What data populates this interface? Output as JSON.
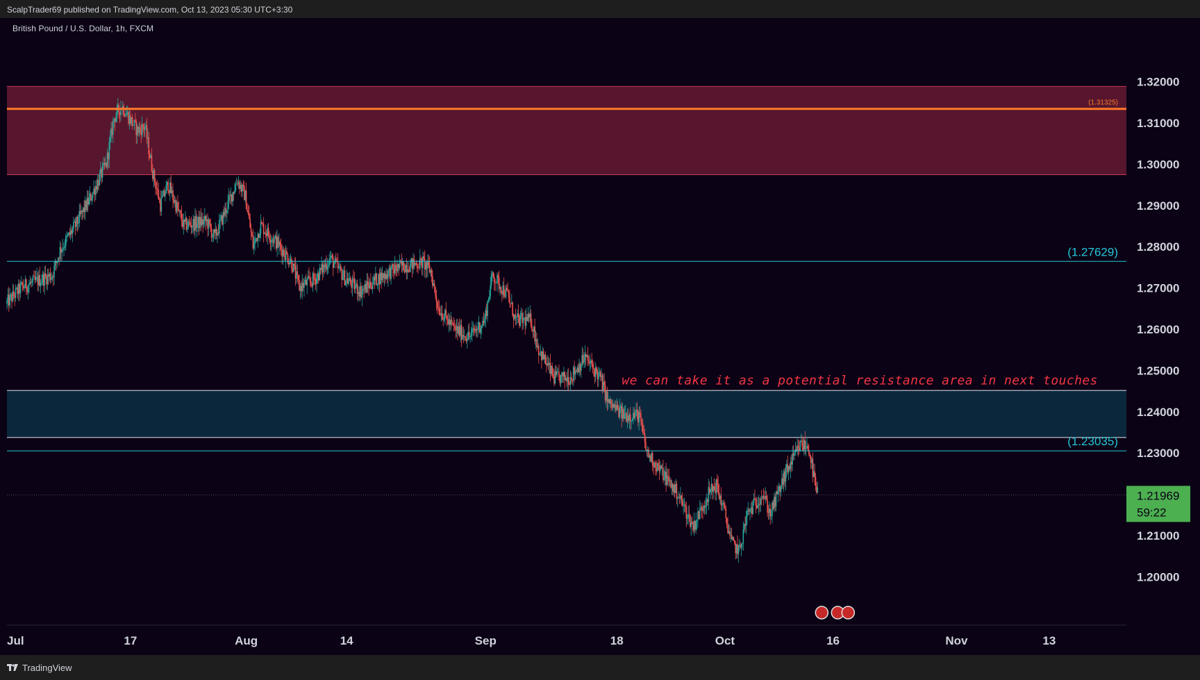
{
  "header": {
    "published_text": "ScalpTrader69 published on TradingView.com, Oct 13, 2023 05:30 UTC+3:30"
  },
  "footer": {
    "brand": "TradingView"
  },
  "colors": {
    "background": "#0b0215",
    "up_candle": "#26a69a",
    "down_candle": "#ef5350",
    "resistance_zone": "#5e1830",
    "support_zone": "#0c2a3f",
    "orange_line": "#ff7a2a",
    "cyan_line": "#26c6da",
    "annotation": "#f23645",
    "price_tag": "#4caf50"
  },
  "chart_data": {
    "type": "candlestick",
    "symbol": "British Pound / U.S. Dollar, 1h, FXCM",
    "ylim": [
      1.1925,
      1.3265
    ],
    "xlim_days": [
      "2023-07-01",
      "2023-11-23"
    ],
    "y_ticks": [
      "1.32000",
      "1.31000",
      "1.30000",
      "1.29000",
      "1.28000",
      "1.27000",
      "1.26000",
      "1.25000",
      "1.24000",
      "1.23000",
      "1.21000",
      "1.20000"
    ],
    "x_ticks": [
      {
        "label": "Jul",
        "date": "2023-07-01"
      },
      {
        "label": "17",
        "date": "2023-07-17"
      },
      {
        "label": "Aug",
        "date": "2023-08-01"
      },
      {
        "label": "14",
        "date": "2023-08-14"
      },
      {
        "label": "Sep",
        "date": "2023-09-01"
      },
      {
        "label": "18",
        "date": "2023-09-18"
      },
      {
        "label": "Oct",
        "date": "2023-10-02"
      },
      {
        "label": "16",
        "date": "2023-10-16"
      },
      {
        "label": "Nov",
        "date": "2023-11-01"
      },
      {
        "label": "13",
        "date": "2023-11-13"
      }
    ],
    "price_path": [
      {
        "date": "2023-07-01",
        "price": 1.266
      },
      {
        "date": "2023-07-03",
        "price": 1.27
      },
      {
        "date": "2023-07-07",
        "price": 1.273
      },
      {
        "date": "2023-07-08",
        "price": 1.279
      },
      {
        "date": "2023-07-10",
        "price": 1.285
      },
      {
        "date": "2023-07-12",
        "price": 1.292
      },
      {
        "date": "2023-07-14",
        "price": 1.3
      },
      {
        "date": "2023-07-15",
        "price": 1.311
      },
      {
        "date": "2023-07-16",
        "price": 1.314
      },
      {
        "date": "2023-07-18",
        "price": 1.308
      },
      {
        "date": "2023-07-19",
        "price": 1.309
      },
      {
        "date": "2023-07-20",
        "price": 1.298
      },
      {
        "date": "2023-07-21",
        "price": 1.29
      },
      {
        "date": "2023-07-22",
        "price": 1.295
      },
      {
        "date": "2023-07-24",
        "price": 1.285
      },
      {
        "date": "2023-07-27",
        "price": 1.286
      },
      {
        "date": "2023-07-28",
        "price": 1.282
      },
      {
        "date": "2023-07-31",
        "price": 1.296
      },
      {
        "date": "2023-08-01",
        "price": 1.292
      },
      {
        "date": "2023-08-02",
        "price": 1.28
      },
      {
        "date": "2023-08-03",
        "price": 1.285
      },
      {
        "date": "2023-08-05",
        "price": 1.281
      },
      {
        "date": "2023-08-07",
        "price": 1.276
      },
      {
        "date": "2023-08-08",
        "price": 1.27
      },
      {
        "date": "2023-08-10",
        "price": 1.272
      },
      {
        "date": "2023-08-12",
        "price": 1.277
      },
      {
        "date": "2023-08-14",
        "price": 1.272
      },
      {
        "date": "2023-08-16",
        "price": 1.269
      },
      {
        "date": "2023-08-18",
        "price": 1.272
      },
      {
        "date": "2023-08-21",
        "price": 1.275
      },
      {
        "date": "2023-08-24",
        "price": 1.276
      },
      {
        "date": "2023-08-25",
        "price": 1.274
      },
      {
        "date": "2023-08-26",
        "price": 1.265
      },
      {
        "date": "2023-08-28",
        "price": 1.26
      },
      {
        "date": "2023-08-30",
        "price": 1.258
      },
      {
        "date": "2023-09-01",
        "price": 1.262
      },
      {
        "date": "2023-09-02",
        "price": 1.273
      },
      {
        "date": "2023-09-04",
        "price": 1.268
      },
      {
        "date": "2023-09-05",
        "price": 1.262
      },
      {
        "date": "2023-09-07",
        "price": 1.262
      },
      {
        "date": "2023-09-08",
        "price": 1.255
      },
      {
        "date": "2023-09-10",
        "price": 1.248
      },
      {
        "date": "2023-09-12",
        "price": 1.248
      },
      {
        "date": "2023-09-14",
        "price": 1.253
      },
      {
        "date": "2023-09-16",
        "price": 1.248
      },
      {
        "date": "2023-09-17",
        "price": 1.242
      },
      {
        "date": "2023-09-19",
        "price": 1.239
      },
      {
        "date": "2023-09-21",
        "price": 1.239
      },
      {
        "date": "2023-09-22",
        "price": 1.23
      },
      {
        "date": "2023-09-24",
        "price": 1.225
      },
      {
        "date": "2023-09-26",
        "price": 1.22
      },
      {
        "date": "2023-09-28",
        "price": 1.212
      },
      {
        "date": "2023-09-30",
        "price": 1.22
      },
      {
        "date": "2023-10-01",
        "price": 1.222
      },
      {
        "date": "2023-10-02",
        "price": 1.216
      },
      {
        "date": "2023-10-03",
        "price": 1.208
      },
      {
        "date": "2023-10-04",
        "price": 1.206
      },
      {
        "date": "2023-10-05",
        "price": 1.215
      },
      {
        "date": "2023-10-07",
        "price": 1.22
      },
      {
        "date": "2023-10-08",
        "price": 1.215
      },
      {
        "date": "2023-10-10",
        "price": 1.225
      },
      {
        "date": "2023-10-12",
        "price": 1.232
      },
      {
        "date": "2023-10-13",
        "price": 1.231
      },
      {
        "date": "2023-10-14",
        "price": 1.22
      }
    ],
    "zones": [
      {
        "name": "resistance-zone",
        "top": 1.3187,
        "bottom": 1.2973
      },
      {
        "name": "support-zone",
        "top": 1.245,
        "bottom": 1.2336
      }
    ],
    "levels": [
      {
        "name": "orange-level",
        "price": 1.31325,
        "label": "(1.31325)"
      },
      {
        "name": "cyan-level-upper",
        "price": 1.27629,
        "label": "(1.27629)"
      },
      {
        "name": "cyan-level-lower",
        "price": 1.23035,
        "label": "(1.23035)"
      }
    ],
    "current_price": {
      "price": "1.21969",
      "countdown": "59:22",
      "value": 1.21969
    },
    "annotation": {
      "text": "we can take it as a potential resistance area in next touches",
      "price": 1.2475,
      "date": "2023-09-19"
    }
  }
}
